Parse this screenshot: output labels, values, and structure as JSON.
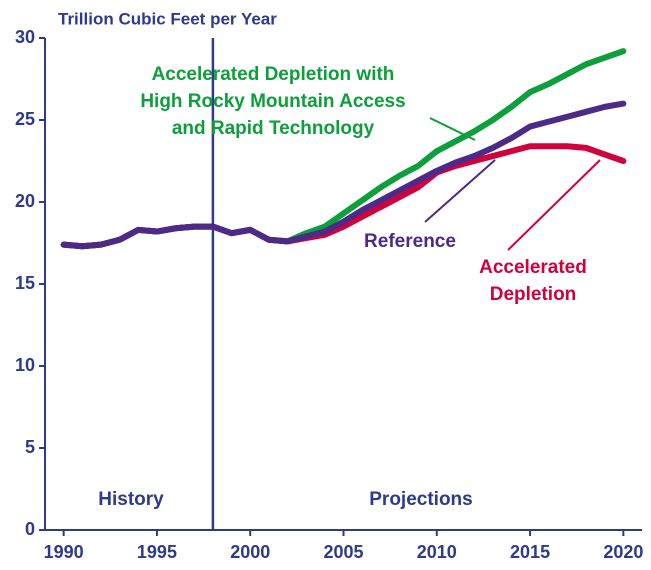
{
  "chart_data": {
    "type": "line",
    "y_label": "Trillion Cubic Feet per Year",
    "x": [
      1990,
      1991,
      1992,
      1993,
      1994,
      1995,
      1996,
      1997,
      1998,
      1999,
      2000,
      2001,
      2002,
      2003,
      2004,
      2005,
      2006,
      2007,
      2008,
      2009,
      2010,
      2011,
      2012,
      2013,
      2014,
      2015,
      2016,
      2017,
      2018,
      2019,
      2020
    ],
    "series": [
      {
        "name": [
          "Accelerated Depletion with",
          "High Rocky Mountain Access",
          "and Rapid Technology"
        ],
        "color": "#0d9f3b",
        "values": [
          17.4,
          17.3,
          17.4,
          17.7,
          18.3,
          18.2,
          18.4,
          18.5,
          18.5,
          18.1,
          18.3,
          17.7,
          17.6,
          18.1,
          18.5,
          19.3,
          20.1,
          20.9,
          21.6,
          22.2,
          23.1,
          23.7,
          24.3,
          25.0,
          25.8,
          26.7,
          27.2,
          27.8,
          28.4,
          28.8,
          29.2
        ]
      },
      {
        "name": [
          "Accelerated",
          "Depletion"
        ],
        "color": "#d2003c",
        "values": [
          17.4,
          17.3,
          17.4,
          17.7,
          18.3,
          18.2,
          18.4,
          18.5,
          18.5,
          18.1,
          18.3,
          17.7,
          17.6,
          17.8,
          18.0,
          18.5,
          19.1,
          19.7,
          20.3,
          20.9,
          21.8,
          22.2,
          22.5,
          22.8,
          23.1,
          23.4,
          23.4,
          23.4,
          23.3,
          22.9,
          22.5
        ]
      },
      {
        "name": [
          "Reference"
        ],
        "color": "#4b2a88",
        "values": [
          17.4,
          17.3,
          17.4,
          17.7,
          18.3,
          18.2,
          18.4,
          18.5,
          18.5,
          18.1,
          18.3,
          17.7,
          17.6,
          17.9,
          18.2,
          18.8,
          19.5,
          20.1,
          20.7,
          21.3,
          21.9,
          22.4,
          22.8,
          23.3,
          23.9,
          24.6,
          24.9,
          25.2,
          25.5,
          25.8,
          26.0
        ]
      }
    ],
    "split_x": 1998,
    "annotations": [
      "History",
      "Projections"
    ],
    "xlim": [
      1989,
      2021
    ],
    "ylim": [
      0,
      30
    ],
    "xticks": [
      1990,
      1995,
      2000,
      2005,
      2010,
      2015,
      2020
    ],
    "yticks": [
      0,
      5,
      10,
      15,
      20,
      25,
      30
    ]
  }
}
